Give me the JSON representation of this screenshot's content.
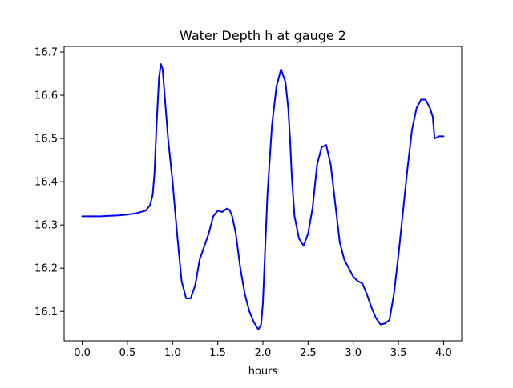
{
  "chart_data": {
    "type": "line",
    "title": "Water Depth h at gauge 2",
    "xlabel": "hours",
    "ylabel": "",
    "xlim": [
      -0.2,
      4.2
    ],
    "ylim": [
      16.032,
      16.713
    ],
    "xticks": [
      "0.0",
      "0.5",
      "1.0",
      "1.5",
      "2.0",
      "2.5",
      "3.0",
      "3.5",
      "4.0"
    ],
    "yticks": [
      "16.1",
      "16.2",
      "16.3",
      "16.4",
      "16.5",
      "16.6",
      "16.7"
    ],
    "grid": false,
    "legend": "none",
    "colors": {
      "line": "#0000ff",
      "axes": "#000000",
      "background": "#ffffff"
    },
    "series": [
      {
        "x": [
          0.0,
          0.2,
          0.4,
          0.5,
          0.6,
          0.7,
          0.75,
          0.78,
          0.8,
          0.82,
          0.85,
          0.87,
          0.89,
          0.92,
          0.95,
          1.0,
          1.05,
          1.1,
          1.15,
          1.2,
          1.25,
          1.3,
          1.35,
          1.4,
          1.45,
          1.5,
          1.55,
          1.6,
          1.63,
          1.66,
          1.7,
          1.75,
          1.8,
          1.85,
          1.9,
          1.95,
          1.98,
          2.0,
          2.02,
          2.05,
          2.1,
          2.15,
          2.2,
          2.25,
          2.28,
          2.3,
          2.32,
          2.35,
          2.4,
          2.45,
          2.5,
          2.55,
          2.58,
          2.6,
          2.65,
          2.7,
          2.75,
          2.8,
          2.85,
          2.9,
          2.95,
          3.0,
          3.05,
          3.1,
          3.15,
          3.2,
          3.25,
          3.3,
          3.35,
          3.4,
          3.45,
          3.5,
          3.55,
          3.6,
          3.65,
          3.7,
          3.75,
          3.8,
          3.85,
          3.88,
          3.9,
          3.95,
          4.0
        ],
        "y": [
          16.32,
          16.32,
          16.322,
          16.324,
          16.327,
          16.333,
          16.345,
          16.37,
          16.42,
          16.52,
          16.64,
          16.672,
          16.66,
          16.58,
          16.5,
          16.4,
          16.28,
          16.17,
          16.13,
          16.13,
          16.16,
          16.22,
          16.25,
          16.28,
          16.32,
          16.333,
          16.33,
          16.338,
          16.335,
          16.32,
          16.28,
          16.2,
          16.14,
          16.1,
          16.075,
          16.058,
          16.07,
          16.12,
          16.22,
          16.37,
          16.53,
          16.62,
          16.66,
          16.63,
          16.57,
          16.5,
          16.41,
          16.32,
          16.268,
          16.252,
          16.28,
          16.34,
          16.4,
          16.44,
          16.48,
          16.485,
          16.44,
          16.35,
          16.26,
          16.22,
          16.2,
          16.18,
          16.17,
          16.165,
          16.14,
          16.11,
          16.085,
          16.07,
          16.072,
          16.08,
          16.14,
          16.23,
          16.33,
          16.43,
          16.52,
          16.57,
          16.59,
          16.59,
          16.57,
          16.55,
          16.5,
          16.505,
          16.505
        ]
      }
    ]
  }
}
